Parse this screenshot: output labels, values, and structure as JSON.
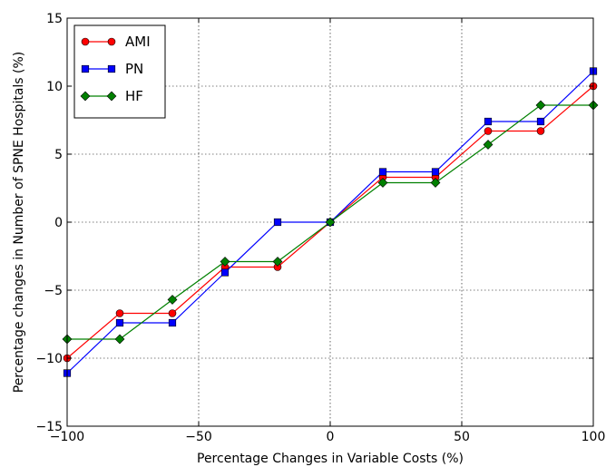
{
  "chart_data": {
    "type": "line",
    "xlabel": "Percentage Changes in Variable Costs (%)",
    "ylabel": "Percentage changes in Number of SPNE Hospitals (%)",
    "xlim": [
      -100,
      100
    ],
    "ylim": [
      -15,
      15
    ],
    "xticks": [
      -100,
      -50,
      0,
      50,
      100
    ],
    "xtick_labels": [
      "−100",
      "−50",
      "0",
      "50",
      "100"
    ],
    "yticks": [
      -15,
      -10,
      -5,
      0,
      5,
      10,
      15
    ],
    "ytick_labels": [
      "−15",
      "−10",
      "−5",
      "0",
      "5",
      "10",
      "15"
    ],
    "grid": true,
    "legend_position": "top-left",
    "x": [
      -100,
      -80,
      -60,
      -40,
      -20,
      0,
      20,
      40,
      60,
      80,
      100
    ],
    "series": [
      {
        "name": "AMI",
        "color": "#ff0000",
        "marker": "circle",
        "steps": [
          [
            -100,
            -10.0
          ],
          [
            -80,
            -6.7
          ],
          [
            -60,
            -6.7
          ],
          [
            -40,
            -3.3
          ],
          [
            -20,
            -3.3
          ],
          [
            0,
            0.0
          ],
          [
            20,
            3.3
          ],
          [
            40,
            3.3
          ],
          [
            60,
            6.7
          ],
          [
            80,
            6.7
          ],
          [
            100,
            10.0
          ]
        ]
      },
      {
        "name": "PN",
        "color": "#0000ff",
        "marker": "square",
        "steps": [
          [
            -100,
            -11.1
          ],
          [
            -80,
            -7.4
          ],
          [
            -60,
            -7.4
          ],
          [
            -40,
            -3.7
          ],
          [
            -20,
            0.0
          ],
          [
            0,
            0.0
          ],
          [
            20,
            3.7
          ],
          [
            40,
            3.7
          ],
          [
            60,
            7.4
          ],
          [
            80,
            7.4
          ],
          [
            100,
            11.1
          ]
        ]
      },
      {
        "name": "HF",
        "color": "#008000",
        "marker": "diamond",
        "steps": [
          [
            -100,
            -8.6
          ],
          [
            -80,
            -8.6
          ],
          [
            -60,
            -5.7
          ],
          [
            -40,
            -2.9
          ],
          [
            -20,
            -2.9
          ],
          [
            0,
            0.0
          ],
          [
            20,
            2.9
          ],
          [
            40,
            2.9
          ],
          [
            60,
            5.7
          ],
          [
            80,
            8.6
          ],
          [
            100,
            8.6
          ]
        ]
      }
    ]
  }
}
